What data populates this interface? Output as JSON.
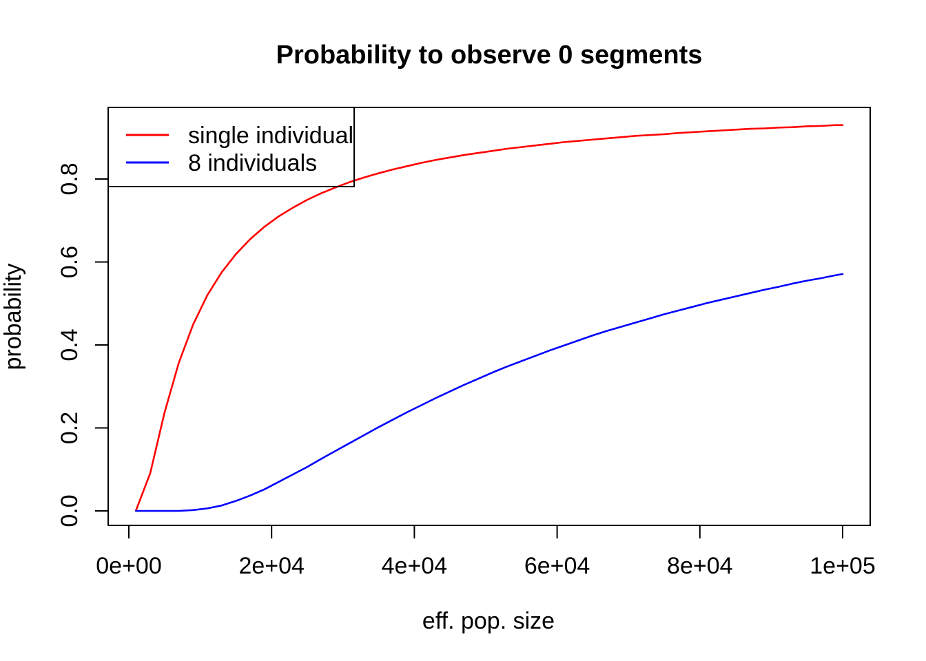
{
  "page": {
    "background": "#ffffff"
  },
  "chart_data": {
    "type": "line",
    "title": "Probability to observe 0 segments",
    "xlabel": "eff. pop. size",
    "ylabel": "probability",
    "grid": false,
    "legend_position": "topleft",
    "xlim": [
      0,
      100000
    ],
    "ylim": [
      0,
      0.93
    ],
    "x_ticks": [
      0,
      20000,
      40000,
      60000,
      80000,
      100000
    ],
    "x_tick_labels": [
      "0e+00",
      "2e+04",
      "4e+04",
      "6e+04",
      "8e+04",
      "1e+05"
    ],
    "y_ticks": [
      0,
      0.2,
      0.4,
      0.6,
      0.8
    ],
    "y_tick_labels": [
      "0.0",
      "0.2",
      "0.4",
      "0.6",
      "0.8"
    ],
    "x": [
      1000,
      3000,
      5000,
      7000,
      9000,
      11000,
      13000,
      15000,
      17000,
      19000,
      21000,
      23000,
      25000,
      27000,
      29000,
      31000,
      33000,
      35000,
      37000,
      39000,
      41000,
      43000,
      45000,
      47000,
      49000,
      51000,
      53000,
      55000,
      57000,
      59000,
      61000,
      63000,
      65000,
      67000,
      69000,
      71000,
      73000,
      75000,
      77000,
      79000,
      81000,
      83000,
      85000,
      87000,
      89000,
      91000,
      93000,
      95000,
      97000,
      99000,
      100000
    ],
    "series": [
      {
        "name": "single individual",
        "color": "#ff0000",
        "values": [
          0.001,
          0.091,
          0.237,
          0.357,
          0.449,
          0.52,
          0.575,
          0.619,
          0.655,
          0.685,
          0.71,
          0.731,
          0.75,
          0.766,
          0.78,
          0.793,
          0.804,
          0.814,
          0.823,
          0.831,
          0.839,
          0.846,
          0.852,
          0.858,
          0.863,
          0.868,
          0.873,
          0.877,
          0.881,
          0.885,
          0.889,
          0.892,
          0.895,
          0.898,
          0.901,
          0.904,
          0.906,
          0.908,
          0.911,
          0.913,
          0.915,
          0.917,
          0.919,
          0.921,
          0.922,
          0.924,
          0.925,
          0.927,
          0.928,
          0.93,
          0.93
        ]
      },
      {
        "name": "8 individuals",
        "color": "#0000ff",
        "values": [
          0.0,
          0.0,
          0.0,
          0.0,
          0.002,
          0.006,
          0.013,
          0.024,
          0.037,
          0.052,
          0.07,
          0.088,
          0.106,
          0.126,
          0.145,
          0.164,
          0.183,
          0.202,
          0.22,
          0.238,
          0.255,
          0.272,
          0.288,
          0.304,
          0.319,
          0.334,
          0.348,
          0.361,
          0.374,
          0.387,
          0.399,
          0.411,
          0.423,
          0.434,
          0.444,
          0.454,
          0.464,
          0.474,
          0.483,
          0.492,
          0.501,
          0.509,
          0.517,
          0.525,
          0.533,
          0.54,
          0.548,
          0.555,
          0.561,
          0.568,
          0.571
        ]
      }
    ]
  }
}
